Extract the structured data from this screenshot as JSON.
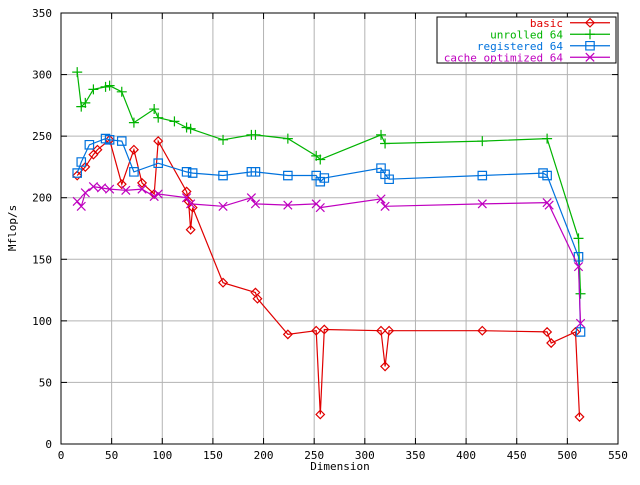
{
  "chart_data": {
    "type": "line",
    "title": "",
    "xlabel": "Dimension",
    "ylabel": "Mflop/s",
    "xlim": [
      0,
      550
    ],
    "ylim": [
      0,
      350
    ],
    "xtick_step": 50,
    "ytick_step": 50,
    "grid": true,
    "legend_position": "top-right",
    "colors": {
      "background": "#ffffff",
      "grid": "#b3b3b3",
      "axis": "#000000"
    },
    "series": [
      {
        "name": "basic",
        "color": "#e00000",
        "marker": "diamond",
        "points": [
          [
            16,
            218
          ],
          [
            24,
            225
          ],
          [
            32,
            235
          ],
          [
            36,
            239
          ],
          [
            48,
            247
          ],
          [
            60,
            211
          ],
          [
            72,
            239
          ],
          [
            80,
            212
          ],
          [
            92,
            203
          ],
          [
            96,
            246
          ],
          [
            124,
            205
          ],
          [
            126,
            197
          ],
          [
            128,
            174
          ],
          [
            130,
            192
          ],
          [
            160,
            131
          ],
          [
            192,
            123
          ],
          [
            194,
            118
          ],
          [
            224,
            89
          ],
          [
            252,
            92
          ],
          [
            256,
            24
          ],
          [
            260,
            93
          ],
          [
            316,
            92
          ],
          [
            320,
            63
          ],
          [
            324,
            92
          ],
          [
            416,
            92
          ],
          [
            480,
            91
          ],
          [
            484,
            82
          ],
          [
            508,
            91
          ],
          [
            512,
            22
          ]
        ]
      },
      {
        "name": "unrolled 64",
        "color": "#00b300",
        "marker": "plus",
        "points": [
          [
            16,
            302
          ],
          [
            20,
            274
          ],
          [
            24,
            277
          ],
          [
            32,
            288
          ],
          [
            44,
            290
          ],
          [
            48,
            291
          ],
          [
            60,
            286
          ],
          [
            72,
            261
          ],
          [
            92,
            272
          ],
          [
            96,
            265
          ],
          [
            112,
            262
          ],
          [
            124,
            257
          ],
          [
            128,
            256
          ],
          [
            160,
            247
          ],
          [
            188,
            251
          ],
          [
            192,
            251
          ],
          [
            224,
            248
          ],
          [
            252,
            234
          ],
          [
            256,
            231
          ],
          [
            316,
            251
          ],
          [
            320,
            244
          ],
          [
            416,
            246
          ],
          [
            480,
            248
          ],
          [
            511,
            167
          ],
          [
            513,
            122
          ]
        ]
      },
      {
        "name": "registered 64",
        "color": "#0072dd",
        "marker": "square",
        "points": [
          [
            16,
            220
          ],
          [
            20,
            229
          ],
          [
            28,
            243
          ],
          [
            44,
            248
          ],
          [
            48,
            247
          ],
          [
            60,
            246
          ],
          [
            72,
            221
          ],
          [
            96,
            228
          ],
          [
            124,
            221
          ],
          [
            130,
            220
          ],
          [
            160,
            218
          ],
          [
            188,
            221
          ],
          [
            192,
            221
          ],
          [
            224,
            218
          ],
          [
            252,
            218
          ],
          [
            256,
            213
          ],
          [
            260,
            216
          ],
          [
            316,
            224
          ],
          [
            320,
            219
          ],
          [
            324,
            215
          ],
          [
            416,
            218
          ],
          [
            476,
            220
          ],
          [
            480,
            218
          ],
          [
            511,
            152
          ],
          [
            513,
            91
          ]
        ]
      },
      {
        "name": "cache optimized 64",
        "color": "#bf00bf",
        "marker": "cross",
        "points": [
          [
            16,
            197
          ],
          [
            20,
            193
          ],
          [
            24,
            204
          ],
          [
            32,
            209
          ],
          [
            40,
            208
          ],
          [
            48,
            207
          ],
          [
            64,
            206
          ],
          [
            80,
            207
          ],
          [
            92,
            201
          ],
          [
            96,
            203
          ],
          [
            124,
            200
          ],
          [
            128,
            195
          ],
          [
            160,
            193
          ],
          [
            188,
            200
          ],
          [
            192,
            195
          ],
          [
            224,
            194
          ],
          [
            252,
            195
          ],
          [
            256,
            192
          ],
          [
            316,
            199
          ],
          [
            320,
            193
          ],
          [
            416,
            195
          ],
          [
            480,
            196
          ],
          [
            482,
            194
          ],
          [
            511,
            144
          ],
          [
            513,
            98
          ]
        ]
      }
    ]
  }
}
